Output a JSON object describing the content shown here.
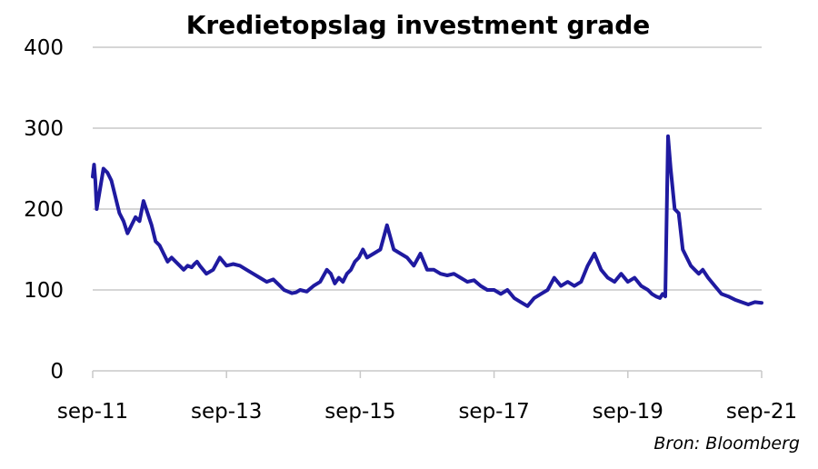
{
  "chart_data": {
    "type": "line",
    "title": "Kredietopslag investment grade",
    "xlabel": "",
    "ylabel": "",
    "ylim": [
      0,
      400
    ],
    "yticks": [
      0,
      100,
      200,
      300,
      400
    ],
    "xticks": [
      "sep-11",
      "sep-13",
      "sep-15",
      "sep-17",
      "sep-19",
      "sep-21"
    ],
    "grid": "horizontal",
    "line_color": "#1f1aa0",
    "source": "Bron: Bloomberg",
    "series": [
      {
        "x": [
          2011.7,
          2011.72,
          2011.74,
          2011.76,
          2011.8,
          2011.86,
          2011.92,
          2011.98,
          2012.04,
          2012.1,
          2012.16,
          2012.22,
          2012.28,
          2012.34,
          2012.4,
          2012.46,
          2012.52,
          2012.58,
          2012.64,
          2012.7,
          2012.76,
          2012.82,
          2012.88,
          2012.94,
          2013.0,
          2013.06,
          2013.12,
          2013.18,
          2013.22,
          2013.26,
          2013.3,
          2013.4,
          2013.5,
          2013.6,
          2013.7,
          2013.8,
          2013.9,
          2014.0,
          2014.1,
          2014.2,
          2014.3,
          2014.4,
          2014.5,
          2014.56,
          2014.62,
          2014.68,
          2014.74,
          2014.8,
          2014.9,
          2015.0,
          2015.1,
          2015.2,
          2015.26,
          2015.32,
          2015.38,
          2015.44,
          2015.5,
          2015.56,
          2015.62,
          2015.68,
          2015.74,
          2015.8,
          2015.9,
          2016.0,
          2016.1,
          2016.2,
          2016.3,
          2016.4,
          2016.5,
          2016.6,
          2016.7,
          2016.8,
          2016.9,
          2017.0,
          2017.1,
          2017.2,
          2017.3,
          2017.4,
          2017.5,
          2017.6,
          2017.7,
          2017.8,
          2017.9,
          2018.0,
          2018.1,
          2018.2,
          2018.3,
          2018.4,
          2018.5,
          2018.6,
          2018.7,
          2018.8,
          2018.9,
          2019.0,
          2019.1,
          2019.2,
          2019.3,
          2019.4,
          2019.5,
          2019.6,
          2019.7,
          2019.8,
          2019.9,
          2020.0,
          2020.06,
          2020.12,
          2020.18,
          2020.22,
          2020.26,
          2020.3,
          2020.34,
          2020.4,
          2020.46,
          2020.52,
          2020.58,
          2020.64,
          2020.7,
          2020.76,
          2020.82,
          2020.9,
          2021.0,
          2021.1,
          2021.2,
          2021.3,
          2021.4,
          2021.5,
          2021.6,
          2021.7
        ],
        "values": [
          240,
          255,
          235,
          200,
          220,
          250,
          245,
          235,
          215,
          195,
          185,
          170,
          180,
          190,
          185,
          210,
          195,
          180,
          160,
          155,
          145,
          135,
          140,
          135,
          130,
          125,
          130,
          128,
          132,
          135,
          130,
          120,
          125,
          140,
          130,
          132,
          130,
          125,
          120,
          115,
          110,
          113,
          105,
          100,
          98,
          96,
          97,
          100,
          98,
          105,
          110,
          125,
          120,
          108,
          115,
          110,
          120,
          125,
          135,
          140,
          150,
          140,
          145,
          150,
          180,
          150,
          145,
          140,
          130,
          145,
          125,
          125,
          120,
          118,
          120,
          115,
          110,
          112,
          105,
          100,
          100,
          95,
          100,
          90,
          85,
          80,
          90,
          95,
          100,
          115,
          105,
          110,
          105,
          110,
          130,
          145,
          125,
          115,
          110,
          120,
          110,
          115,
          105,
          100,
          95,
          92,
          90,
          95,
          92,
          290,
          250,
          200,
          195,
          150,
          140,
          130,
          125,
          120,
          125,
          115,
          105,
          95,
          92,
          88,
          85,
          82,
          85,
          84
        ]
      }
    ]
  }
}
